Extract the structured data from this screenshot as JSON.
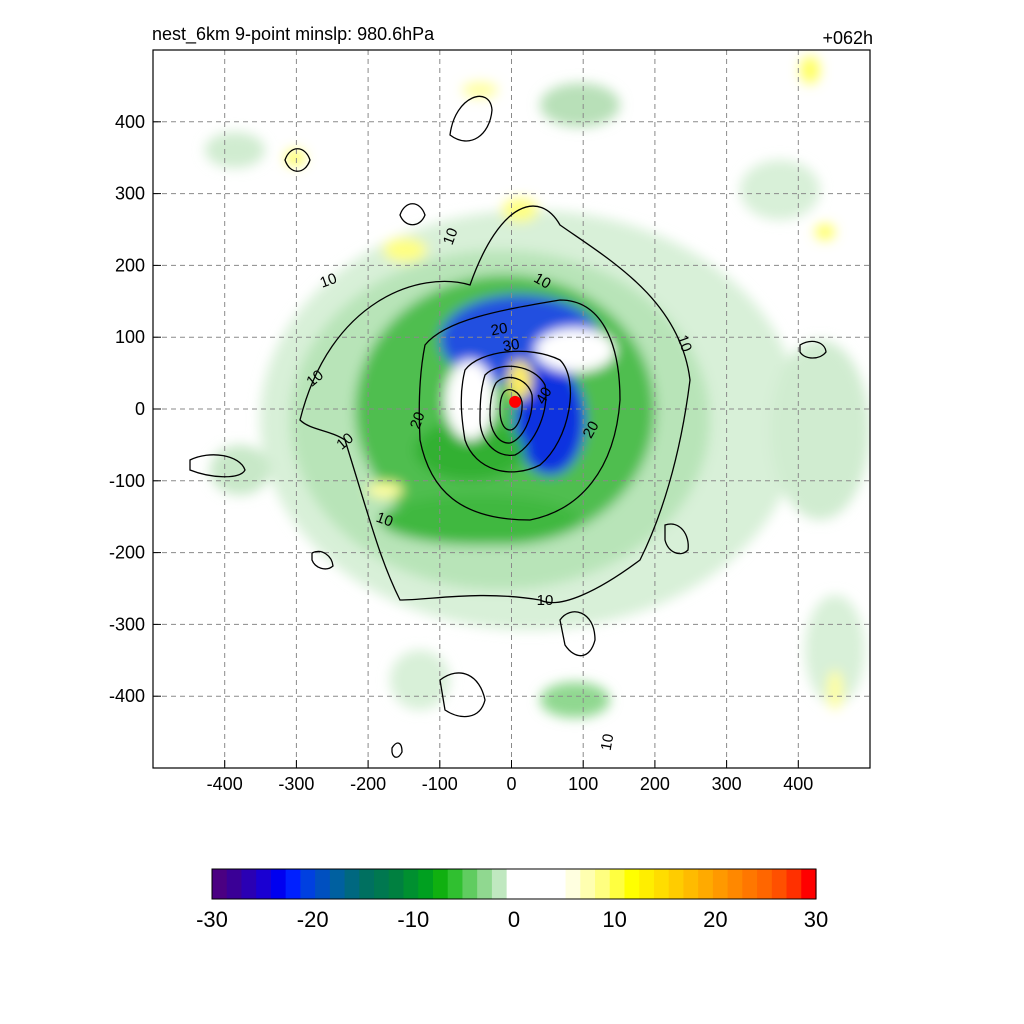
{
  "title_left": "nest_6km  9-point minslp: 980.6hPa",
  "title_right": "+062h",
  "chart_data": {
    "type": "heatmap",
    "x_ticks": [
      -400,
      -300,
      -200,
      -100,
      0,
      100,
      200,
      300,
      400
    ],
    "y_ticks": [
      400,
      300,
      200,
      100,
      0,
      -100,
      -200,
      -300,
      -400
    ],
    "xlim": [
      -500,
      500
    ],
    "ylim": [
      -500,
      500
    ],
    "grid": true,
    "center_marker": {
      "x": 5,
      "y": 10,
      "color": "#ff0000"
    },
    "contours": [
      {
        "label": "10",
        "level": 10
      },
      {
        "label": "20",
        "level": 20
      },
      {
        "label": "30",
        "level": 30
      },
      {
        "label": "40",
        "level": 40
      }
    ],
    "colorbar": {
      "range": [
        -30,
        30
      ],
      "tick_labels": [
        "-30",
        "-20",
        "-10",
        "0",
        "10",
        "20",
        "30"
      ],
      "colors": [
        "#4b0082",
        "#3a0096",
        "#2a00b4",
        "#1a00d2",
        "#0000f0",
        "#0020ff",
        "#0040e0",
        "#0050c0",
        "#0060a0",
        "#006880",
        "#007060",
        "#007850",
        "#008040",
        "#009030",
        "#00a020",
        "#10b010",
        "#30c030",
        "#60cc60",
        "#90d890",
        "#c0e8c0",
        "#ffffff",
        "#ffffff",
        "#ffffff",
        "#ffffff",
        "#ffffe0",
        "#ffffb0",
        "#ffff80",
        "#ffff40",
        "#ffff00",
        "#ffee00",
        "#ffdd00",
        "#ffcc00",
        "#ffbb00",
        "#ffaa00",
        "#ff9900",
        "#ff8800",
        "#ff7700",
        "#ff6600",
        "#ff5000",
        "#ff3000",
        "#ff0000"
      ]
    }
  }
}
